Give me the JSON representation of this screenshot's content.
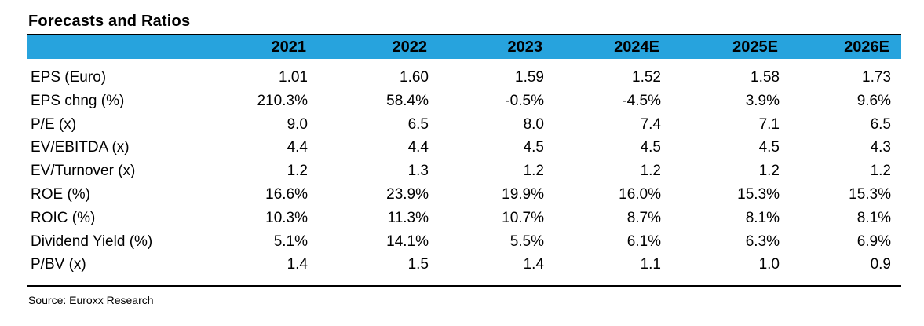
{
  "title": "Forecasts and Ratios",
  "header_color": "#27a3dd",
  "years": [
    "2021",
    "2022",
    "2023",
    "2024E",
    "2025E",
    "2026E"
  ],
  "rows": [
    {
      "label": "EPS (Euro)",
      "values": [
        "1.01",
        "1.60",
        "1.59",
        "1.52",
        "1.58",
        "1.73"
      ]
    },
    {
      "label": "EPS chng (%)",
      "values": [
        "210.3%",
        "58.4%",
        "-0.5%",
        "-4.5%",
        "3.9%",
        "9.6%"
      ]
    },
    {
      "label": "P/E (x)",
      "values": [
        "9.0",
        "6.5",
        "8.0",
        "7.4",
        "7.1",
        "6.5"
      ]
    },
    {
      "label": "EV/EBITDA (x)",
      "values": [
        "4.4",
        "4.4",
        "4.5",
        "4.5",
        "4.5",
        "4.3"
      ]
    },
    {
      "label": "EV/Turnover (x)",
      "values": [
        "1.2",
        "1.3",
        "1.2",
        "1.2",
        "1.2",
        "1.2"
      ]
    },
    {
      "label": "ROE (%)",
      "values": [
        "16.6%",
        "23.9%",
        "19.9%",
        "16.0%",
        "15.3%",
        "15.3%"
      ]
    },
    {
      "label": "ROIC (%)",
      "values": [
        "10.3%",
        "11.3%",
        "10.7%",
        "8.7%",
        "8.1%",
        "8.1%"
      ]
    },
    {
      "label": "Dividend Yield (%)",
      "values": [
        "5.1%",
        "14.1%",
        "5.5%",
        "6.1%",
        "6.3%",
        "6.9%"
      ]
    },
    {
      "label": "P/BV (x)",
      "values": [
        "1.4",
        "1.5",
        "1.4",
        "1.1",
        "1.0",
        "0.9"
      ]
    }
  ],
  "source": "Source: Euroxx Research"
}
